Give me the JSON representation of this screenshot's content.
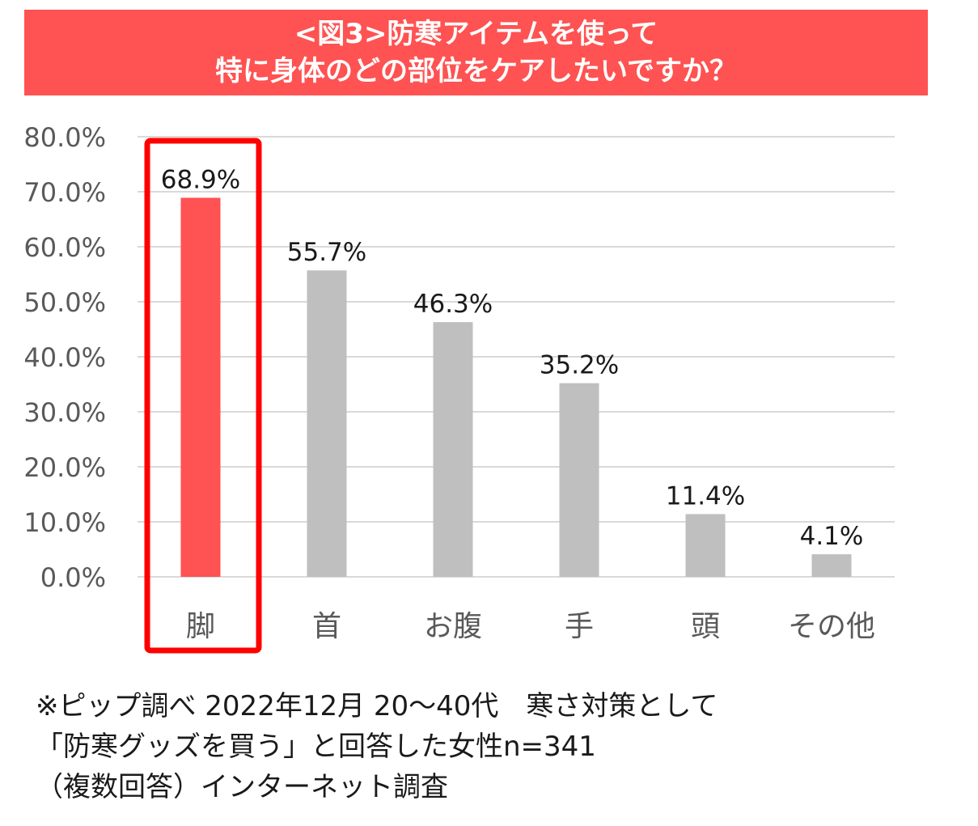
{
  "title": {
    "line1": "<図3>防寒アイテムを使って",
    "line2": "特に身体のどの部位をケアしたいですか？"
  },
  "footnote": {
    "line1": "※ピップ調べ 2022年12月 20～40代　寒さ対策として",
    "line2": "「防寒グッズを買う」と回答した女性n=341",
    "line3": "（複数回答）インターネット調査"
  },
  "chart_data": {
    "type": "bar",
    "categories": [
      "脚",
      "首",
      "お腹",
      "手",
      "頭",
      "その他"
    ],
    "values": [
      68.9,
      55.7,
      46.3,
      35.2,
      11.4,
      4.1
    ],
    "value_labels": [
      "68.9%",
      "55.7%",
      "46.3%",
      "35.2%",
      "11.4%",
      "4.1%"
    ],
    "y_ticks": [
      "0.0%",
      "10.0%",
      "20.0%",
      "30.0%",
      "40.0%",
      "50.0%",
      "60.0%",
      "70.0%",
      "80.0%"
    ],
    "ylim": [
      0,
      80
    ],
    "grid": true,
    "highlight_index": 0,
    "colors": {
      "highlight": "#ff5252",
      "bar": "#bfbfbf",
      "highlight_frame": "#ff0000",
      "grid": "#d9d9d9",
      "tick_text": "#595959",
      "label_text": "#1a1a1a"
    }
  }
}
